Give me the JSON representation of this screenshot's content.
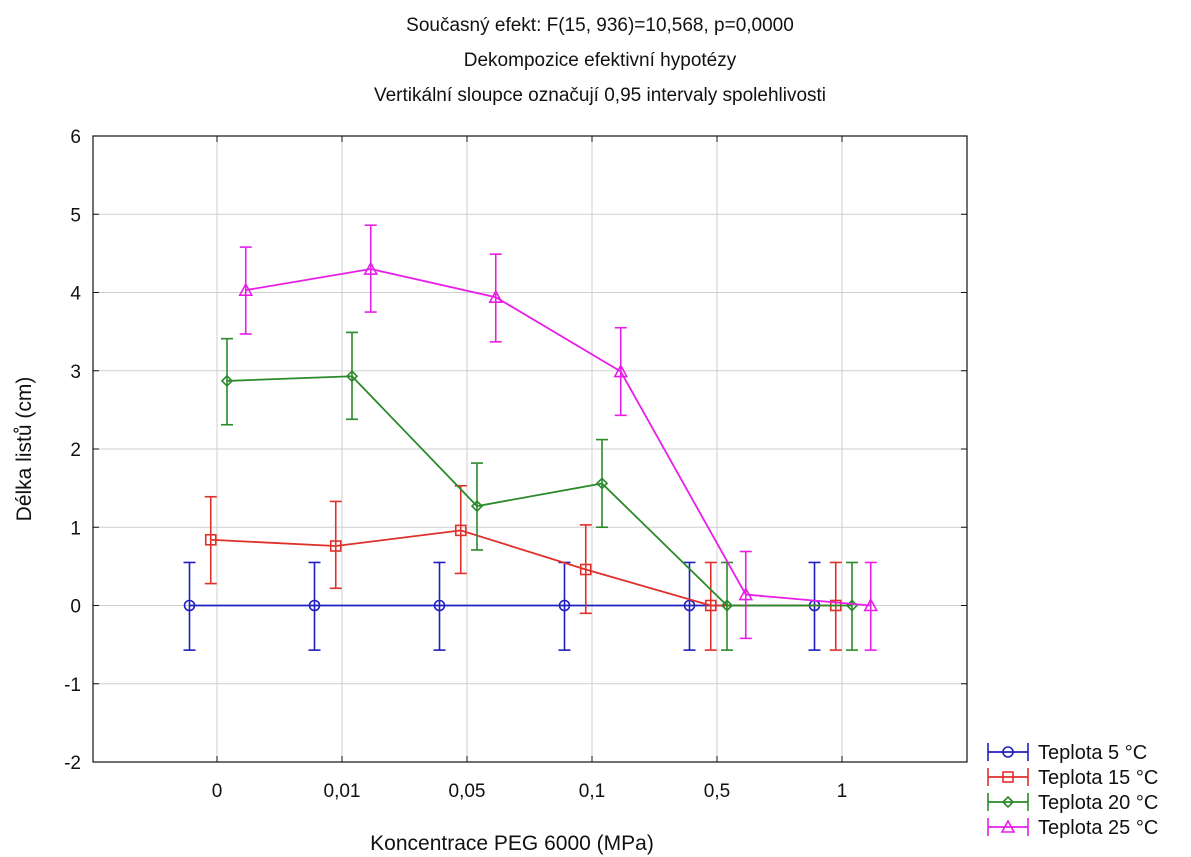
{
  "chart_data": {
    "type": "line",
    "title_lines": [
      "Současný efekt: F(15, 936)=10,568, p=0,0000",
      "Dekompozice efektivní hypotézy",
      "Vertikální sloupce označují 0,95 intervaly spolehlivosti"
    ],
    "xlabel": "Koncentrace PEG 6000 (MPa)",
    "ylabel": "Délka listů (cm)",
    "categories": [
      "0",
      "0,01",
      "0,05",
      "0,1",
      "0,5",
      "1"
    ],
    "ylim": [
      -2,
      6
    ],
    "yticks": [
      -2,
      -1,
      0,
      1,
      2,
      3,
      4,
      5,
      6
    ],
    "grid": true,
    "legend_position": "bottom-right",
    "series": [
      {
        "name": "Teplota 5 °C",
        "color": "#1f1fbf",
        "marker": "circle",
        "offset": -0.22,
        "values": [
          0,
          0,
          0,
          0,
          0,
          0
        ],
        "lower": [
          -0.57,
          -0.57,
          -0.57,
          -0.57,
          -0.57,
          -0.57
        ],
        "upper": [
          0.55,
          0.55,
          0.55,
          0.55,
          0.55,
          0.55
        ]
      },
      {
        "name": "Teplota 15 °C",
        "color": "#e0302a",
        "marker": "square",
        "offset": -0.05,
        "values": [
          0.84,
          0.76,
          0.96,
          0.46,
          0,
          0
        ],
        "lower": [
          0.28,
          0.22,
          0.41,
          -0.1,
          -0.57,
          -0.57
        ],
        "upper": [
          1.39,
          1.33,
          1.53,
          1.03,
          0.55,
          0.55
        ]
      },
      {
        "name": "Teplota 20 °C",
        "color": "#2a8a2a",
        "marker": "diamond",
        "offset": 0.08,
        "values": [
          2.87,
          2.93,
          1.27,
          1.56,
          0,
          0
        ],
        "lower": [
          2.31,
          2.38,
          0.71,
          1.0,
          -0.57,
          -0.57
        ],
        "upper": [
          3.41,
          3.49,
          1.82,
          2.12,
          0.55,
          0.55
        ]
      },
      {
        "name": "Teplota 25 °C",
        "color": "#e81ee8",
        "marker": "triangle",
        "offset": 0.23,
        "values": [
          4.03,
          4.3,
          3.94,
          2.99,
          0.14,
          0
        ],
        "lower": [
          3.47,
          3.75,
          3.37,
          2.43,
          -0.42,
          -0.57
        ],
        "upper": [
          4.58,
          4.86,
          4.49,
          3.55,
          0.69,
          0.55
        ]
      }
    ]
  }
}
